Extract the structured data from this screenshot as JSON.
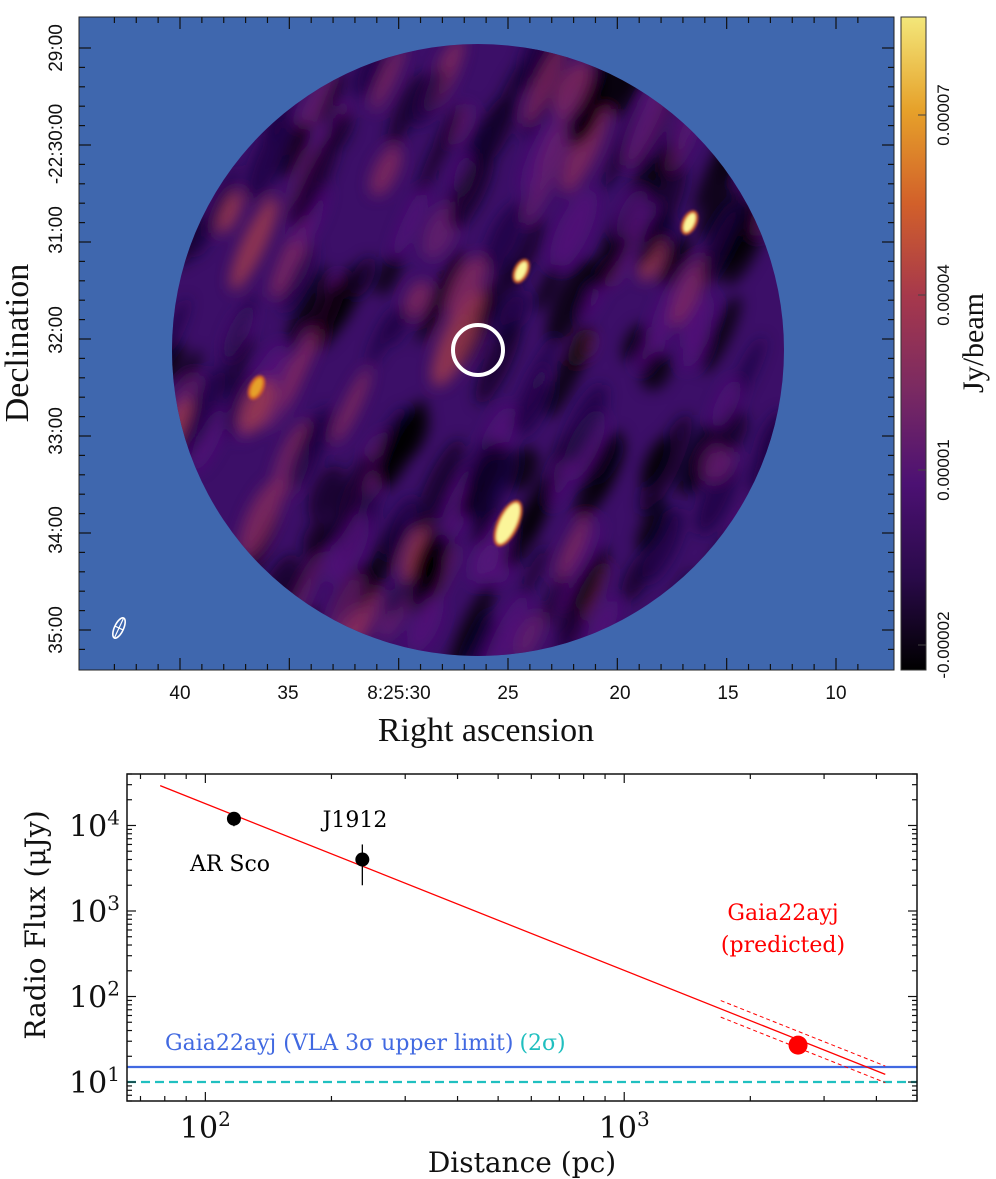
{
  "chart_data": [
    {
      "type": "heatmap",
      "panel": "top",
      "title": "",
      "xlabel": "Right ascension",
      "ylabel": "Declination",
      "x_ticks": [
        "40",
        "35",
        "8:25:30",
        "25",
        "20",
        "15",
        "10"
      ],
      "y_ticks": [
        "29:00",
        "-22:30:00",
        "31:00",
        "32:00",
        "33:00",
        "34:00",
        "35:00"
      ],
      "colorbar": {
        "label": "Jy/beam",
        "ticks": [
          "0.00007",
          "0.00004",
          "0.00001",
          "-0.00002"
        ],
        "tick_values": [
          7e-05,
          4e-05,
          1e-05,
          -2e-05
        ],
        "range": [
          -3e-05,
          9e-05
        ],
        "colormap": "inferno-like",
        "stops": [
          "#000000",
          "#2a0a4a",
          "#4c1173",
          "#7a2a62",
          "#a6384c",
          "#d2602a",
          "#e6a12a",
          "#f3e77a"
        ]
      },
      "background_color": "#3f67ae",
      "field_shape": "circle",
      "target_marker": {
        "shape": "circle",
        "color": "#ffffff",
        "ra": "8:25:26.6",
        "dec": "-22:32:20"
      },
      "beam_marker": {
        "shape": "ellipse",
        "color": "#ffffff",
        "location": "bottom-left"
      },
      "bright_sources": [
        {
          "ra_s": 24.4,
          "dec_arcmin": 31.3,
          "brightness": 0.8
        },
        {
          "ra_s": 16.7,
          "dec_arcmin": 30.8,
          "brightness": 0.75
        },
        {
          "ra_s": 25.0,
          "dec_arcmin": 33.9,
          "brightness": 1.0
        },
        {
          "ra_s": 36.5,
          "dec_arcmin": 32.5,
          "brightness": 0.55
        }
      ]
    },
    {
      "type": "scatter",
      "panel": "bottom",
      "title": "",
      "xlabel": "Distance (pc)",
      "ylabel": "Radio Flux (μJy)",
      "xscale": "log",
      "yscale": "log",
      "xlim": [
        65,
        5000
      ],
      "ylim": [
        6,
        40000
      ],
      "x_ticks": [
        {
          "value": 100,
          "label": "10",
          "exp": "2"
        },
        {
          "value": 1000,
          "label": "10",
          "exp": "3"
        }
      ],
      "y_ticks": [
        {
          "value": 10,
          "label": "10",
          "exp": "1"
        },
        {
          "value": 100,
          "label": "10",
          "exp": "2"
        },
        {
          "value": 1000,
          "label": "10",
          "exp": "3"
        },
        {
          "value": 10000,
          "label": "10",
          "exp": "4"
        }
      ],
      "points": [
        {
          "name": "AR Sco",
          "x": 117,
          "y": 12000,
          "yerr_low": 9800,
          "yerr_high": 12000,
          "color": "#000000",
          "label": "AR Sco",
          "label_pos": "below"
        },
        {
          "name": "J1912",
          "x": 237,
          "y": 4000,
          "yerr_low": 2000,
          "yerr_high": 6000,
          "color": "#000000",
          "label": "J1912",
          "label_pos": "above"
        },
        {
          "name": "Gaia22ayj",
          "x": 2600,
          "y": 27,
          "color": "#ff0000",
          "label": "Gaia22ayj\n(predicted)",
          "label_lines": [
            "Gaia22ayj",
            "(predicted)"
          ]
        }
      ],
      "fit_line": {
        "color": "#ff0000",
        "x_start": 78,
        "x_end": 4200,
        "y_at_100": 18000,
        "slope": -1.95
      },
      "fit_band": {
        "color": "#ff0000",
        "style": "dashed",
        "x_start": 1700,
        "x_end": 4200,
        "factor": 1.25
      },
      "hlines": [
        {
          "y": 15,
          "color": "#4169e1",
          "style": "solid",
          "label": "Gaia22ayj (VLA 3σ upper limit)"
        },
        {
          "y": 10,
          "color": "#20c0c0",
          "style": "dashed",
          "label": "(2σ)"
        }
      ],
      "annotation_colors": {
        "black": "#000000",
        "red": "#ff0000",
        "blue": "#4169e1",
        "cyan": "#20bfbf"
      }
    }
  ]
}
